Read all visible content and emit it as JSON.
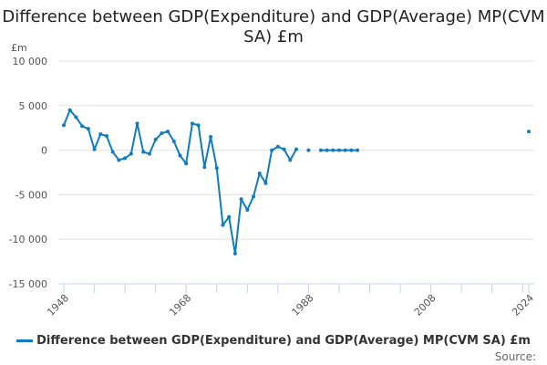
{
  "chart_data": {
    "type": "line",
    "title": "Difference between GDP(Expenditure) and GDP(Average) MP(CVM SA) £m",
    "ylabel": "£m",
    "xlabel": "",
    "ylim": [
      -15000,
      10000
    ],
    "xlim": [
      1948,
      2024
    ],
    "yticks": [
      10000,
      5000,
      0,
      -5000,
      -10000,
      -15000
    ],
    "ytick_labels": [
      "10 000",
      "5 000",
      "0",
      "-5 000",
      "-10 000",
      "-15 000"
    ],
    "xtick_labels": [
      "1948",
      "1968",
      "1988",
      "2008",
      "2024"
    ],
    "grid": true,
    "legend_position": "bottom",
    "color": "#0e7cc1",
    "series": [
      {
        "name": "Difference between GDP(Expenditure) and GDP(Average) MP(CVM SA) £m",
        "x": [
          1948,
          1949,
          1950,
          1951,
          1952,
          1953,
          1954,
          1955,
          1956,
          1957,
          1958,
          1959,
          1960,
          1961,
          1962,
          1963,
          1964,
          1965,
          1966,
          1967,
          1968,
          1969,
          1970,
          1971,
          1972,
          1973,
          1974,
          1975,
          1976,
          1977,
          1978,
          1979,
          1980,
          1981,
          1982,
          1983,
          1984,
          1985,
          1986,
          1987,
          1988,
          1989,
          1990,
          1991,
          1992,
          1993,
          1994,
          1995,
          1996,
          2024
        ],
        "values": [
          2800,
          4500,
          3700,
          2700,
          2400,
          100,
          1800,
          1600,
          -200,
          -1100,
          -900,
          -400,
          3000,
          -200,
          -400,
          1200,
          1900,
          2100,
          1000,
          -600,
          -1500,
          3000,
          2800,
          -1900,
          1500,
          -2000,
          -8400,
          -7500,
          -11600,
          -5500,
          -6700,
          -5200,
          -2600,
          -3700,
          0,
          400,
          100,
          -1100,
          100,
          null,
          0,
          null,
          0,
          0,
          0,
          0,
          0,
          0,
          0,
          2100
        ]
      }
    ]
  },
  "legend_label": "Difference between GDP(Expenditure) and GDP(Average) MP(CVM SA) £m",
  "source_label": "Source:"
}
